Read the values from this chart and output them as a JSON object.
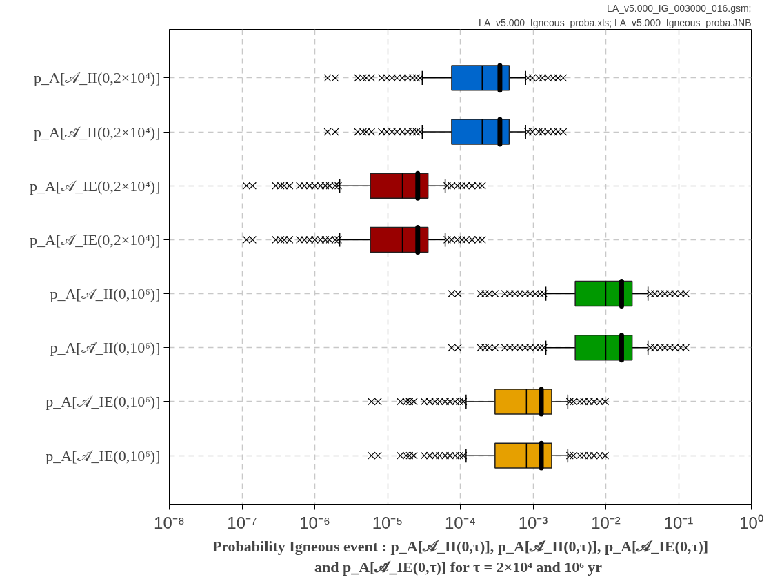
{
  "chart_data": {
    "type": "box",
    "orientation": "horizontal",
    "annotations": [
      "LA_v5.000_IG_003000_016.gsm;",
      "LA_v5.000_Igneous_proba.xls; LA_v5.000_Igneous_proba.JNB"
    ],
    "xlabel": "Probability Igneous event : p_A[𝒜_II(0,τ)], p_A[𝒜̃_II(0,τ)], p_A[𝒜_IE(0,τ)]\nand  p_A[𝒜̃_IE(0,τ)] for τ = 2×10⁴ and 10⁶ yr",
    "categories": [
      "p_A[𝒜_II(0,2×10⁴)]",
      "p_A[𝒜̃_II(0,2×10⁴)]",
      "p_A[𝒜_IE(0,2×10⁴)]",
      "p_A[𝒜̃_IE(0,2×10⁴)]",
      "p_A[𝒜_II(0,10⁶)]",
      "p_A[𝒜̃_II(0,10⁶)]",
      "p_A[𝒜_IE(0,10⁶)]",
      "p_A[𝒜̃_IE(0,10⁶)]"
    ],
    "colors": [
      "#0066cc",
      "#0066cc",
      "#990000",
      "#990000",
      "#009900",
      "#009900",
      "#e6a000",
      "#e6a000"
    ],
    "boxes": [
      {
        "low": 3e-05,
        "q1": 7.6e-05,
        "median": 0.0002,
        "q3": 0.00047,
        "high": 0.00079,
        "mean": 0.00035,
        "outliers": [
          1.5e-06,
          1.9e-06,
          3.9e-06,
          4.6e-06,
          5.1e-06,
          6e-06,
          8.3e-06,
          9.8e-06,
          1.15e-05,
          1.35e-05,
          1.6e-05,
          1.9e-05,
          2.2e-05,
          2.5e-05,
          2.8e-05,
          0.00085,
          0.00098,
          0.0012,
          0.00135,
          0.0016,
          0.0019,
          0.0022,
          0.0026
        ]
      },
      {
        "low": 3e-05,
        "q1": 7.6e-05,
        "median": 0.0002,
        "q3": 0.00047,
        "high": 0.00079,
        "mean": 0.00035,
        "outliers": [
          1.5e-06,
          1.9e-06,
          3.9e-06,
          4.6e-06,
          5.1e-06,
          6e-06,
          8.3e-06,
          9.8e-06,
          1.15e-05,
          1.35e-05,
          1.6e-05,
          1.9e-05,
          2.2e-05,
          2.5e-05,
          2.8e-05,
          0.00085,
          0.00098,
          0.0012,
          0.00135,
          0.0016,
          0.0019,
          0.0022,
          0.0026
        ]
      },
      {
        "low": 2.2e-06,
        "q1": 5.8e-06,
        "median": 1.6e-05,
        "q3": 3.6e-05,
        "high": 6.2e-05,
        "mean": 2.6e-05,
        "outliers": [
          1.15e-07,
          1.4e-07,
          2.9e-07,
          3.4e-07,
          3.8e-07,
          4.5e-07,
          6.2e-07,
          7.2e-07,
          8.5e-07,
          1e-06,
          1.2e-06,
          1.4e-06,
          1.6e-06,
          1.9e-06,
          2.1e-06,
          6.6e-05,
          7.6e-05,
          9.1e-05,
          0.000105,
          0.00012,
          0.000145,
          0.000175,
          0.0002
        ]
      },
      {
        "low": 2.2e-06,
        "q1": 5.8e-06,
        "median": 1.6e-05,
        "q3": 3.6e-05,
        "high": 6.2e-05,
        "mean": 2.6e-05,
        "outliers": [
          1.15e-07,
          1.4e-07,
          2.9e-07,
          3.4e-07,
          3.8e-07,
          4.5e-07,
          6.2e-07,
          7.2e-07,
          8.5e-07,
          1e-06,
          1.2e-06,
          1.4e-06,
          1.6e-06,
          1.9e-06,
          2.1e-06,
          6.6e-05,
          7.6e-05,
          9.1e-05,
          0.000105,
          0.00012,
          0.000145,
          0.000175,
          0.0002
        ]
      },
      {
        "low": 0.0015,
        "q1": 0.0038,
        "median": 0.01,
        "q3": 0.023,
        "high": 0.038,
        "mean": 0.0165,
        "outliers": [
          7.6e-05,
          9.3e-05,
          0.00019,
          0.00022,
          0.00025,
          0.0003,
          0.00041,
          0.00048,
          0.00056,
          0.00066,
          0.00078,
          0.00091,
          0.00107,
          0.00125,
          0.0014,
          0.041,
          0.047,
          0.056,
          0.065,
          0.076,
          0.089,
          0.107,
          0.126
        ]
      },
      {
        "low": 0.0015,
        "q1": 0.0038,
        "median": 0.01,
        "q3": 0.023,
        "high": 0.038,
        "mean": 0.0165,
        "outliers": [
          7.6e-05,
          9.3e-05,
          0.00019,
          0.00022,
          0.00025,
          0.0003,
          0.00041,
          0.00048,
          0.00056,
          0.00066,
          0.00078,
          0.00091,
          0.00107,
          0.00125,
          0.0014,
          0.041,
          0.047,
          0.056,
          0.065,
          0.076,
          0.089,
          0.107,
          0.126
        ]
      },
      {
        "low": 0.00012,
        "q1": 0.0003,
        "median": 0.00081,
        "q3": 0.0018,
        "high": 0.003,
        "mean": 0.0013,
        "outliers": [
          6e-06,
          7.4e-06,
          1.5e-05,
          1.8e-05,
          2e-05,
          2.3e-05,
          3.2e-05,
          3.8e-05,
          4.5e-05,
          5.2e-05,
          6.2e-05,
          7.2e-05,
          8.5e-05,
          9.8e-05,
          0.00011,
          0.0032,
          0.0036,
          0.0044,
          0.005,
          0.0059,
          0.0069,
          0.0083,
          0.0098
        ]
      },
      {
        "low": 0.00012,
        "q1": 0.0003,
        "median": 0.00081,
        "q3": 0.0018,
        "high": 0.003,
        "mean": 0.0013,
        "outliers": [
          6e-06,
          7.4e-06,
          1.5e-05,
          1.8e-05,
          2e-05,
          2.3e-05,
          3.2e-05,
          3.8e-05,
          4.5e-05,
          5.2e-05,
          6.2e-05,
          7.2e-05,
          8.5e-05,
          9.8e-05,
          0.00011,
          0.0032,
          0.0036,
          0.0044,
          0.005,
          0.0059,
          0.0069,
          0.0083,
          0.0098
        ]
      }
    ],
    "log": "x",
    "xlim": [
      1e-08,
      1
    ],
    "xticks": [
      {
        "value": 1e-08,
        "label": "10⁻⁸"
      },
      {
        "value": 1e-07,
        "label": "10⁻⁷"
      },
      {
        "value": 1e-06,
        "label": "10⁻⁶"
      },
      {
        "value": 1e-05,
        "label": "10⁻⁵"
      },
      {
        "value": 0.0001,
        "label": "10⁻⁴"
      },
      {
        "value": 0.001,
        "label": "10⁻³"
      },
      {
        "value": 0.01,
        "label": "10⁻²"
      },
      {
        "value": 0.1,
        "label": "10⁻¹"
      },
      {
        "value": 1,
        "label": "10⁰"
      }
    ],
    "grid": true
  }
}
